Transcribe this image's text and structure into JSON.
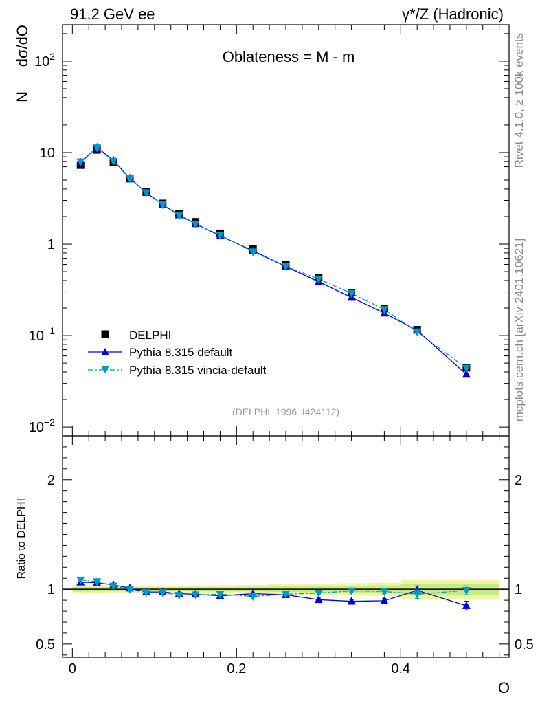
{
  "header": {
    "energy_label": "91.2 GeV ee",
    "process_prefix": "γ*/Z",
    "process_suffix": " (Hadronic)"
  },
  "side": {
    "rivet_label": "Rivet 4.1.0, ≥ 100k events",
    "source_label": "mcplots.cern.ch [arXiv:2401.10621]"
  },
  "chart_data": [
    {
      "type": "line",
      "panel": "main",
      "title": "Oblateness = M - m",
      "ylabel_n": "N",
      "ylabel": "dσ/dO",
      "yscale": "log",
      "ylim": [
        0.008,
        250
      ],
      "xlim": [
        -0.012,
        0.532
      ],
      "analysis_id": "(DELPHI_1996_I424112)",
      "legend_position": "bottom-left",
      "ytick_labels": [
        {
          "value": 0.01,
          "base": "10",
          "exp": "−2"
        },
        {
          "value": 0.1,
          "base": "10",
          "exp": "−1"
        },
        {
          "value": 1,
          "text": "1"
        },
        {
          "value": 10,
          "text": "10"
        },
        {
          "value": 100,
          "base": "10",
          "exp": "2"
        }
      ],
      "x": [
        0.01,
        0.03,
        0.05,
        0.07,
        0.09,
        0.11,
        0.13,
        0.15,
        0.18,
        0.22,
        0.26,
        0.3,
        0.34,
        0.38,
        0.42,
        0.48
      ],
      "series": [
        {
          "name": "DELPHI",
          "color": "#000000",
          "marker": "square",
          "values": [
            7.3,
            10.7,
            7.8,
            5.2,
            3.75,
            2.78,
            2.16,
            1.75,
            1.31,
            0.88,
            0.6,
            0.43,
            0.295,
            0.197,
            0.116,
            0.0445
          ]
        },
        {
          "name": "Pythia 8.315 default",
          "color": "#0000dd",
          "marker": "triangle-up",
          "line": "solid",
          "values": [
            7.8,
            11.4,
            8.2,
            5.25,
            3.65,
            2.7,
            2.08,
            1.67,
            1.23,
            0.845,
            0.57,
            0.388,
            0.261,
            0.176,
            0.114,
            0.0377
          ]
        },
        {
          "name": "Pythia 8.315 vincia-default",
          "color": "#0099bb",
          "marker": "triangle-down",
          "line": "dashdot",
          "values": [
            7.95,
            11.3,
            8.05,
            5.2,
            3.65,
            2.7,
            2.04,
            1.66,
            1.25,
            0.825,
            0.57,
            0.415,
            0.29,
            0.193,
            0.11,
            0.0441
          ]
        }
      ]
    },
    {
      "type": "line",
      "panel": "ratio",
      "ylabel": "Ratio to DELPHI",
      "xlabel": "O",
      "ylim": [
        0.38,
        2.4
      ],
      "xlim": [
        -0.012,
        0.532
      ],
      "reference_line": 1,
      "ytick_labels": [
        "0.5",
        "1",
        "2"
      ],
      "ytick_values": [
        0.5,
        1,
        2
      ],
      "xtick_labels": [
        "0",
        "0.2",
        "0.4"
      ],
      "xtick_values": [
        0,
        0.2,
        0.4
      ],
      "x": [
        0.01,
        0.03,
        0.05,
        0.07,
        0.09,
        0.11,
        0.13,
        0.15,
        0.18,
        0.22,
        0.26,
        0.3,
        0.34,
        0.38,
        0.42,
        0.48
      ],
      "bin_edges": [
        0.0,
        0.02,
        0.04,
        0.06,
        0.08,
        0.1,
        0.12,
        0.14,
        0.16,
        0.2,
        0.24,
        0.28,
        0.32,
        0.36,
        0.4,
        0.44,
        0.52
      ],
      "band_outer": [
        0.04,
        0.038,
        0.035,
        0.033,
        0.032,
        0.032,
        0.033,
        0.035,
        0.036,
        0.04,
        0.045,
        0.05,
        0.055,
        0.06,
        0.09,
        0.09
      ],
      "band_inner": [
        0.022,
        0.02,
        0.018,
        0.017,
        0.017,
        0.017,
        0.018,
        0.019,
        0.02,
        0.022,
        0.025,
        0.028,
        0.03,
        0.035,
        0.05,
        0.05
      ],
      "series": [
        {
          "name": "Pythia 8.315 default",
          "color": "#0000dd",
          "marker": "triangle-up",
          "line": "solid",
          "values": [
            1.065,
            1.06,
            1.04,
            1.01,
            0.975,
            0.975,
            0.96,
            0.955,
            0.94,
            0.96,
            0.95,
            0.905,
            0.89,
            0.895,
            0.99,
            0.85
          ],
          "errors": [
            0.01,
            0.01,
            0.01,
            0.01,
            0.01,
            0.01,
            0.01,
            0.01,
            0.01,
            0.01,
            0.01,
            0.015,
            0.015,
            0.02,
            0.04,
            0.04
          ]
        },
        {
          "name": "Pythia 8.315 vincia-default",
          "color": "#0099bb",
          "marker": "triangle-down",
          "line": "dashdot",
          "values": [
            1.085,
            1.07,
            1.03,
            1.0,
            0.97,
            0.97,
            0.945,
            0.95,
            0.955,
            0.935,
            0.955,
            0.965,
            0.985,
            0.98,
            0.955,
            0.99
          ],
          "errors": [
            0.01,
            0.01,
            0.01,
            0.01,
            0.01,
            0.01,
            0.01,
            0.01,
            0.01,
            0.01,
            0.01,
            0.015,
            0.015,
            0.02,
            0.04,
            0.04
          ]
        }
      ]
    }
  ]
}
